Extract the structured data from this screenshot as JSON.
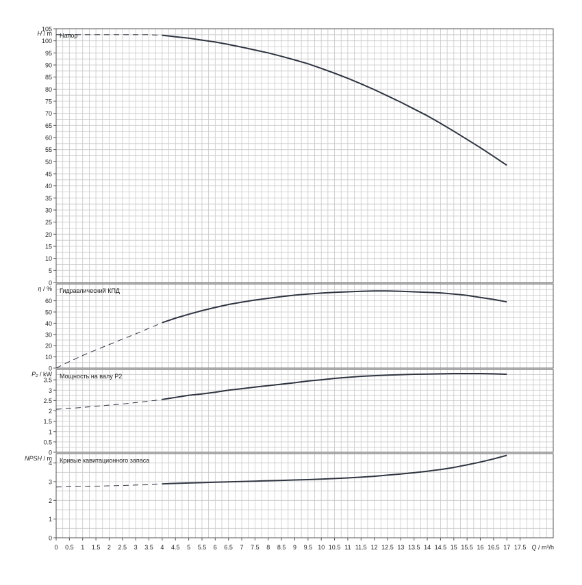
{
  "chart_data": [
    {
      "type": "line",
      "title": "Напор",
      "ylabel_italic": "H",
      "ylabel_unit": "m",
      "ylim": [
        0,
        105
      ],
      "ytick_step": 5,
      "ytick_labels": [
        "0",
        "5",
        "10",
        "15",
        "20",
        "25",
        "30",
        "35",
        "40",
        "45",
        "50",
        "55",
        "60",
        "65",
        "70",
        "75",
        "80",
        "85",
        "90",
        "95",
        "100",
        "105"
      ],
      "dashed_until_x": 4,
      "x": [
        0,
        0.5,
        1,
        1.5,
        2,
        2.5,
        3,
        3.5,
        4,
        4.5,
        5,
        5.5,
        6,
        6.5,
        7,
        7.5,
        8,
        8.5,
        9,
        9.5,
        10,
        10.5,
        11,
        11.5,
        12,
        12.5,
        13,
        13.5,
        14,
        14.5,
        15,
        15.5,
        16,
        16.5,
        17
      ],
      "y": [
        102.5,
        102.5,
        102.5,
        102.5,
        102.5,
        102.5,
        102.5,
        102.5,
        102.3,
        101.7,
        101.1,
        100.3,
        99.5,
        98.5,
        97.4,
        96.2,
        95.0,
        93.6,
        92.1,
        90.5,
        88.6,
        86.6,
        84.5,
        82.2,
        79.8,
        77.2,
        74.6,
        71.8,
        69.0,
        65.9,
        62.6,
        59.2,
        55.8,
        52.2,
        48.5
      ]
    },
    {
      "type": "line",
      "title": "Гидравлический КПД",
      "ylabel_italic": "η",
      "ylabel_unit": "%",
      "ylim": [
        0,
        75
      ],
      "ytick_step": 10,
      "ytick_labels": [
        "0",
        "10",
        "20",
        "30",
        "40",
        "50",
        "60"
      ],
      "dashed_until_x": 4,
      "x": [
        0,
        0.5,
        1,
        1.5,
        2,
        2.5,
        3,
        3.5,
        4,
        4.5,
        5,
        5.5,
        6,
        6.5,
        7,
        7.5,
        8,
        8.5,
        9,
        9.5,
        10,
        10.5,
        11,
        11.5,
        12,
        12.5,
        13,
        13.5,
        14,
        14.5,
        15,
        15.5,
        16,
        16.5,
        17
      ],
      "y": [
        0,
        5.8,
        11.3,
        16.2,
        21.0,
        25.8,
        30.5,
        35.5,
        40.5,
        44.5,
        48.0,
        51.2,
        54.0,
        56.7,
        58.8,
        60.7,
        62.2,
        63.7,
        65.0,
        66.0,
        66.8,
        67.5,
        68.0,
        68.5,
        68.8,
        68.8,
        68.5,
        68.0,
        67.5,
        67.0,
        66.0,
        64.8,
        63.0,
        61.2,
        59.0
      ]
    },
    {
      "type": "line",
      "title": "Мощность на валу P2",
      "ylabel_italic": "P₂",
      "ylabel_unit": "kW",
      "ylim": [
        0,
        4
      ],
      "ytick_step": 0.5,
      "ytick_labels": [
        "0",
        "0.5",
        "1",
        "1.5",
        "2",
        "2.5",
        "3",
        "3.5"
      ],
      "dashed_until_x": 4,
      "x": [
        0,
        0.5,
        1,
        1.5,
        2,
        2.5,
        3,
        3.5,
        4,
        4.5,
        5,
        5.5,
        6,
        6.5,
        7,
        7.5,
        8,
        8.5,
        9,
        9.5,
        10,
        10.5,
        11,
        11.5,
        12,
        12.5,
        13,
        13.5,
        14,
        14.5,
        15,
        15.5,
        16,
        16.5,
        17
      ],
      "y": [
        2.08,
        2.12,
        2.17,
        2.22,
        2.28,
        2.33,
        2.4,
        2.47,
        2.55,
        2.65,
        2.75,
        2.82,
        2.9,
        3.0,
        3.07,
        3.15,
        3.22,
        3.29,
        3.36,
        3.44,
        3.5,
        3.57,
        3.62,
        3.67,
        3.7,
        3.73,
        3.75,
        3.77,
        3.78,
        3.79,
        3.8,
        3.8,
        3.8,
        3.79,
        3.77
      ]
    },
    {
      "type": "line",
      "title": "Кривые кавитационного запаса",
      "ylabel_italic": "NPSH",
      "ylabel_unit": "m",
      "ylim": [
        0,
        4.5
      ],
      "ytick_step": 1,
      "ytick_labels": [
        "0",
        "1",
        "2",
        "3",
        "4"
      ],
      "dashed_until_x": 4,
      "x": [
        0,
        0.5,
        1,
        1.5,
        2,
        2.5,
        3,
        3.5,
        4,
        4.5,
        5,
        5.5,
        6,
        6.5,
        7,
        7.5,
        8,
        8.5,
        9,
        9.5,
        10,
        10.5,
        11,
        11.5,
        12,
        12.5,
        13,
        13.5,
        14,
        14.5,
        15,
        15.5,
        16,
        16.5,
        17
      ],
      "y": [
        2.72,
        2.73,
        2.74,
        2.76,
        2.78,
        2.8,
        2.82,
        2.84,
        2.88,
        2.91,
        2.93,
        2.95,
        2.97,
        2.99,
        3.01,
        3.03,
        3.05,
        3.07,
        3.09,
        3.11,
        3.14,
        3.17,
        3.2,
        3.24,
        3.29,
        3.35,
        3.41,
        3.48,
        3.56,
        3.65,
        3.76,
        3.9,
        4.05,
        4.22,
        4.41
      ]
    }
  ],
  "x_axis": {
    "ticks": [
      "0",
      "0.5",
      "1",
      "1.5",
      "2",
      "2.5",
      "3",
      "3.5",
      "4",
      "4.5",
      "5",
      "5.5",
      "6",
      "6.5",
      "7",
      "7.5",
      "8",
      "8.5",
      "9",
      "9.5",
      "10",
      "10.5",
      "11",
      "11.5",
      "12",
      "12.5",
      "13",
      "13.5",
      "14",
      "14.5",
      "15",
      "15.5",
      "16",
      "16.5",
      "17",
      "17.5"
    ],
    "max": 18.75,
    "label_italic": "Q",
    "label_unit": "m³/h"
  },
  "colors": {
    "curve": "#2e3440",
    "grid": "#c8c8c8",
    "frame": "#555555"
  }
}
